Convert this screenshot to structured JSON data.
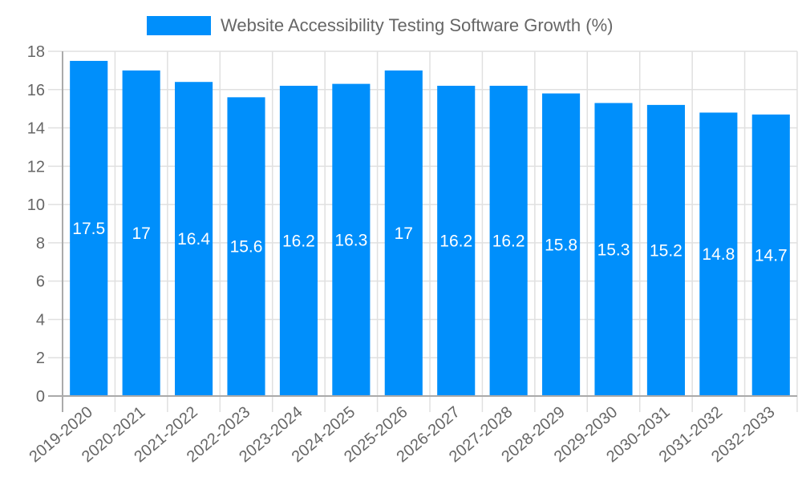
{
  "chart_data": {
    "type": "bar",
    "title": "",
    "legend": [
      {
        "label": "Website Accessibility Testing Software Growth (%)",
        "color": "#008FFB"
      }
    ],
    "legend_position": "top",
    "categories": [
      "2019-2020",
      "2020-2021",
      "2021-2022",
      "2022-2023",
      "2023-2024",
      "2024-2025",
      "2025-2026",
      "2026-2027",
      "2027-2028",
      "2028-2029",
      "2029-2030",
      "2030-2031",
      "2031-2032",
      "2032-2033"
    ],
    "series": [
      {
        "name": "Website Accessibility Testing Software Growth (%)",
        "color": "#008FFB",
        "values": [
          17.5,
          17,
          16.4,
          15.6,
          16.2,
          16.3,
          17,
          16.2,
          16.2,
          15.8,
          15.3,
          15.2,
          14.8,
          14.7
        ]
      }
    ],
    "data_labels": [
      "17.5",
      "17",
      "16.4",
      "15.6",
      "16.2",
      "16.3",
      "17",
      "16.2",
      "16.2",
      "15.8",
      "15.3",
      "15.2",
      "14.8",
      "14.7"
    ],
    "xlabel": "",
    "ylabel": "",
    "ylim": [
      0,
      18
    ],
    "yticks": [
      "0",
      "2",
      "4",
      "6",
      "8",
      "10",
      "12",
      "14",
      "16",
      "18"
    ],
    "grid": true
  },
  "legend": {
    "label": "Website Accessibility Testing Software Growth (%)",
    "color": "#008FFB"
  }
}
